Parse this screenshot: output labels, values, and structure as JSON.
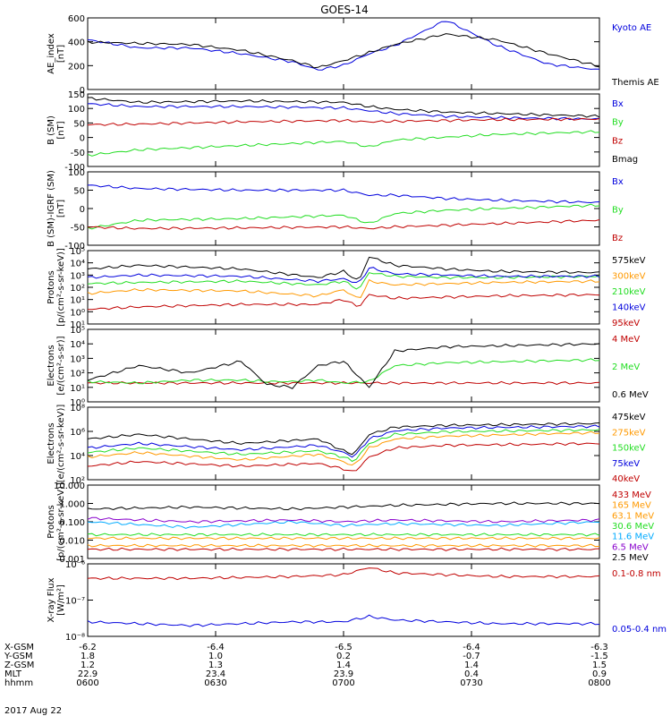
{
  "title": "GOES-14",
  "date": "2017 Aug 22",
  "colors": {
    "black": "#000000",
    "blue": "#0000dd",
    "green": "#22dd22",
    "red": "#c00000",
    "orange": "#ff9900",
    "cyan": "#00aaff",
    "purple": "#8800cc"
  },
  "chart_data": [
    {
      "type": "line",
      "ylabel": "AE_index\n[nT]",
      "ylim": [
        0,
        620
      ],
      "yticks": [
        "0",
        "200",
        "400",
        "600"
      ],
      "x": [
        0,
        0.1,
        0.2,
        0.3,
        0.4,
        0.45,
        0.5,
        0.55,
        0.6,
        0.7,
        0.8,
        0.9,
        1.0
      ],
      "series": [
        {
          "name": "Kyoto AE",
          "color": "blue",
          "values": [
            430,
            360,
            360,
            310,
            240,
            170,
            210,
            310,
            380,
            600,
            380,
            220,
            170
          ]
        },
        {
          "name": "Themis AE",
          "color": "black",
          "values": [
            410,
            400,
            390,
            340,
            250,
            190,
            250,
            320,
            390,
            480,
            430,
            310,
            200
          ]
        }
      ]
    },
    {
      "type": "line",
      "ylabel": "B (SM)\n[nT]",
      "ylim": [
        -110,
        150
      ],
      "yticks": [
        "150",
        "100",
        "50",
        "0",
        "-50",
        "-100"
      ],
      "x": [
        0,
        0.1,
        0.3,
        0.5,
        0.55,
        0.6,
        0.7,
        0.8,
        1.0
      ],
      "series": [
        {
          "name": "Bx",
          "color": "blue",
          "values": [
            115,
            105,
            105,
            100,
            90,
            80,
            70,
            65,
            60
          ]
        },
        {
          "name": "By",
          "color": "green",
          "values": [
            -70,
            -50,
            -35,
            -20,
            -40,
            -15,
            -5,
            5,
            15
          ]
        },
        {
          "name": "Bz",
          "color": "red",
          "values": [
            40,
            42,
            50,
            55,
            50,
            52,
            55,
            58,
            60
          ]
        },
        {
          "name": "Bmag",
          "color": "black",
          "values": [
            135,
            120,
            125,
            120,
            105,
            95,
            85,
            80,
            70
          ]
        }
      ]
    },
    {
      "type": "line",
      "ylabel": "B (SM)-IGRF (SM)\n[nT]",
      "ylim": [
        -110,
        110
      ],
      "yticks": [
        "100",
        "50",
        "0",
        "-50",
        "-100"
      ],
      "x": [
        0,
        0.1,
        0.3,
        0.5,
        0.55,
        0.6,
        0.7,
        0.8,
        1.0
      ],
      "series": [
        {
          "name": "Bx",
          "color": "blue",
          "values": [
            70,
            60,
            55,
            55,
            40,
            40,
            30,
            25,
            18
          ]
        },
        {
          "name": "By",
          "color": "green",
          "values": [
            -60,
            -35,
            -30,
            -20,
            -45,
            -15,
            -5,
            0,
            10
          ]
        },
        {
          "name": "Bz",
          "color": "red",
          "values": [
            -55,
            -60,
            -58,
            -55,
            -60,
            -55,
            -50,
            -45,
            -35
          ]
        }
      ]
    },
    {
      "type": "line",
      "ylabel": "Protons\n[p/(cm²-s-sr-keV)]",
      "log": true,
      "ylim": [
        -1,
        5
      ],
      "yticks": [
        "10¹",
        "10⁰",
        "10¹",
        "10²",
        "10³",
        "10⁴",
        "10⁵"
      ],
      "x": [
        0,
        0.1,
        0.3,
        0.45,
        0.5,
        0.53,
        0.55,
        0.6,
        0.7,
        0.8,
        1.0
      ],
      "series": [
        {
          "name": "575keV",
          "color": "black",
          "values": [
            3.5,
            3.8,
            3.5,
            2.8,
            3.3,
            2.5,
            4.5,
            3.8,
            3.5,
            3.3,
            3.2
          ]
        },
        {
          "name": "300keV",
          "color": "orange",
          "values": [
            1.5,
            1.8,
            1.7,
            1.3,
            1.8,
            1.0,
            2.5,
            2.2,
            2.3,
            2.4,
            2.5
          ]
        },
        {
          "name": "210keV",
          "color": "green",
          "values": [
            2.3,
            2.4,
            2.5,
            2.2,
            2.5,
            1.8,
            3.2,
            2.9,
            2.8,
            2.8,
            2.9
          ]
        },
        {
          "name": "140keV",
          "color": "blue",
          "values": [
            2.8,
            3.0,
            2.9,
            2.5,
            2.7,
            2.3,
            3.6,
            3.1,
            3.0,
            2.9,
            2.9
          ]
        },
        {
          "name": "95keV",
          "color": "red",
          "values": [
            0.2,
            0.4,
            0.6,
            0.6,
            1.0,
            0.4,
            1.4,
            1.1,
            1.2,
            1.3,
            1.4
          ]
        }
      ]
    },
    {
      "type": "line",
      "ylabel": "Electrons\n[e/(cm²-s-sr)]",
      "log": true,
      "ylim": [
        0,
        5
      ],
      "yticks": [
        "10⁰",
        "10¹",
        "10²",
        "10³",
        "10⁴",
        "10⁵"
      ],
      "x": [
        0,
        0.1,
        0.2,
        0.3,
        0.35,
        0.4,
        0.45,
        0.5,
        0.55,
        0.6,
        0.7,
        1.0
      ],
      "series": [
        {
          "name": "4 MeV",
          "color": "red",
          "values": [
            1.3,
            1.3,
            1.3,
            1.3,
            1.3,
            1.3,
            1.3,
            1.3,
            1.3,
            1.3,
            1.3,
            1.3
          ]
        },
        {
          "name": "2 MeV",
          "color": "green",
          "values": [
            1.4,
            1.3,
            1.5,
            1.5,
            1.4,
            1.4,
            1.5,
            1.3,
            1.4,
            2.5,
            2.7,
            2.9
          ]
        },
        {
          "name": "0.6 MeV",
          "color": "black",
          "values": [
            1.5,
            2.5,
            2.0,
            2.8,
            1.2,
            1.0,
            2.5,
            2.8,
            1.0,
            3.5,
            3.8,
            4.0
          ]
        }
      ]
    },
    {
      "type": "line",
      "ylabel": "Electrons\n[e/(cm²-s-sr-keV)]",
      "log": true,
      "ylim": [
        1,
        9
      ],
      "yticks": [
        "10²",
        "10⁴",
        "10⁶",
        "10⁸"
      ],
      "x": [
        0,
        0.1,
        0.3,
        0.45,
        0.5,
        0.52,
        0.55,
        0.6,
        0.7,
        1.0
      ],
      "series": [
        {
          "name": "475keV",
          "color": "black",
          "values": [
            5.5,
            6.0,
            5.0,
            5.5,
            4.2,
            3.8,
            6.0,
            6.8,
            7.0,
            7.2
          ]
        },
        {
          "name": "275keV",
          "color": "orange",
          "values": [
            3.5,
            4.0,
            3.2,
            3.8,
            3.0,
            2.5,
            4.5,
            5.5,
            5.8,
            6.2
          ]
        },
        {
          "name": "150keV",
          "color": "green",
          "values": [
            4.0,
            4.5,
            3.8,
            4.2,
            3.5,
            3.0,
            5.0,
            6.0,
            6.3,
            6.5
          ]
        },
        {
          "name": "75keV",
          "color": "blue",
          "values": [
            4.5,
            5.0,
            4.3,
            4.8,
            4.0,
            3.5,
            5.5,
            6.4,
            6.7,
            6.9
          ]
        },
        {
          "name": "40keV",
          "color": "red",
          "values": [
            2.5,
            3.0,
            2.5,
            2.8,
            2.2,
            1.8,
            3.5,
            4.5,
            4.8,
            5.0
          ]
        }
      ]
    },
    {
      "type": "line",
      "ylabel": "Protons\n[p/(cm²-s-sr-keV)]",
      "log": true,
      "ylim": [
        -3,
        1
      ],
      "yticks": [
        "0.001",
        "0.010",
        "0.100",
        "1.000",
        "10.000"
      ],
      "x": [
        0,
        0.2,
        0.4,
        0.5,
        0.6,
        0.8,
        1.0
      ],
      "series": [
        {
          "name": "433 MeV",
          "color": "red",
          "values": [
            -2.5,
            -2.5,
            -2.5,
            -2.5,
            -2.5,
            -2.5,
            -2.5
          ]
        },
        {
          "name": "165 MeV",
          "color": "orange",
          "values": [
            -2.3,
            -2.3,
            -2.3,
            -2.3,
            -2.3,
            -2.3,
            -2.3
          ]
        },
        {
          "name": "63.1 MeV",
          "color": "orange",
          "values": [
            -1.9,
            -1.9,
            -1.9,
            -1.9,
            -1.9,
            -1.9,
            -1.9
          ]
        },
        {
          "name": "30.6 MeV",
          "color": "green",
          "values": [
            -1.7,
            -1.7,
            -1.7,
            -1.7,
            -1.7,
            -1.7,
            -1.7
          ]
        },
        {
          "name": "11.6 MeV",
          "color": "cyan",
          "values": [
            -1.0,
            -1.3,
            -1.0,
            -1.2,
            -1.1,
            -1.2,
            -1.0
          ]
        },
        {
          "name": "6.5 MeV",
          "color": "purple",
          "values": [
            -0.8,
            -1.0,
            -0.9,
            -1.0,
            -0.9,
            -1.0,
            -0.9
          ]
        },
        {
          "name": "2.5 MeV",
          "color": "black",
          "values": [
            -0.3,
            -0.2,
            -0.3,
            -0.2,
            -0.1,
            0.0,
            0.0
          ]
        }
      ]
    },
    {
      "type": "line",
      "ylabel": "X-ray Flux\n[W/m²]",
      "log": true,
      "ylim": [
        -8,
        -6
      ],
      "yticks": [
        "10⁻⁸",
        "10⁻⁷",
        "10⁻⁶"
      ],
      "x": [
        0,
        0.2,
        0.4,
        0.5,
        0.55,
        0.6,
        0.7,
        0.8,
        1.0
      ],
      "series": [
        {
          "name": "0.1-0.8 nm",
          "color": "red",
          "values": [
            -6.4,
            -6.4,
            -6.35,
            -6.3,
            -6.1,
            -6.25,
            -6.3,
            -6.35,
            -6.35
          ]
        },
        {
          "name": "0.05-0.4 nm",
          "color": "blue",
          "values": [
            -7.6,
            -7.7,
            -7.6,
            -7.6,
            -7.45,
            -7.55,
            -7.6,
            -7.65,
            -7.65
          ]
        }
      ]
    }
  ],
  "orbit_table": {
    "rows": [
      {
        "label": "X-GSM",
        "values": [
          "-6.2",
          "-6.4",
          "-6.5",
          "-6.4",
          "-6.3"
        ]
      },
      {
        "label": "Y-GSM",
        "values": [
          "1.8",
          "1.0",
          "0.2",
          "-0.7",
          "-1.5"
        ]
      },
      {
        "label": "Z-GSM",
        "values": [
          "1.2",
          "1.3",
          "1.4",
          "1.4",
          "1.5"
        ]
      },
      {
        "label": "MLT",
        "values": [
          "22.9",
          "23.4",
          "23.9",
          "0.4",
          "0.9"
        ]
      },
      {
        "label": "hhmm",
        "values": [
          "0600",
          "0630",
          "0700",
          "0730",
          "0800"
        ]
      }
    ]
  }
}
